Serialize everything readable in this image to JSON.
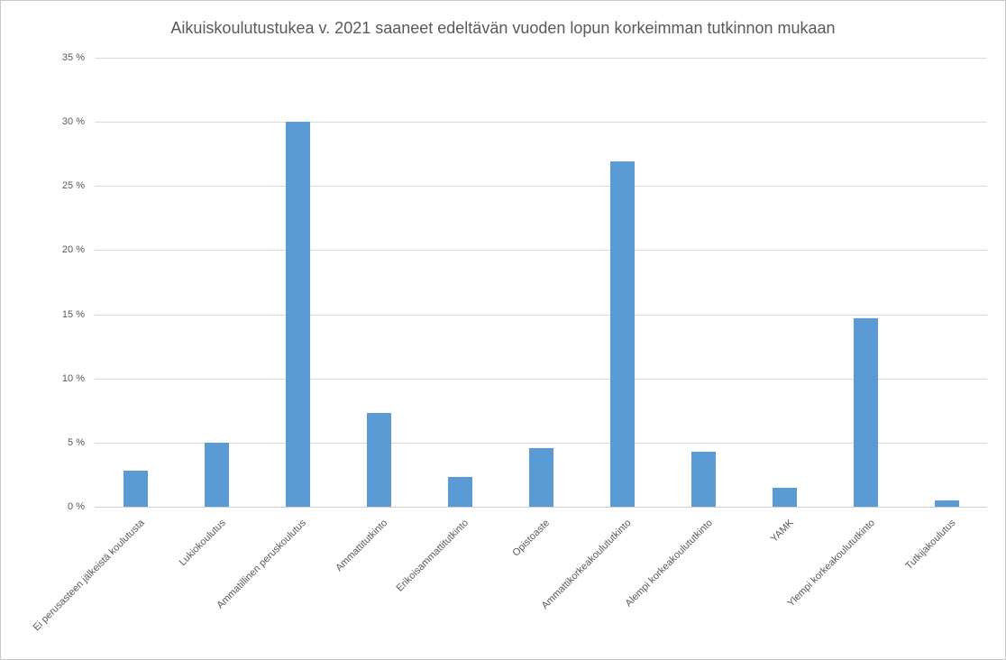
{
  "chart_data": {
    "type": "bar",
    "title": "Aikuiskoulutustukea v. 2021 saaneet edeltävän vuoden lopun korkeimman tutkinnon mukaan",
    "categories": [
      "Ei perusasteen jälkeistä koulutusta",
      "Lukiokoulutus",
      "Ammatillinen peruskoulutus",
      "Ammattitutkinto",
      "Erikoisammattitutkinto",
      "Opistoaste",
      "Ammattikorkeakoulututkinto",
      "Alempi korkeakoulututkinto",
      "YAMK",
      "Ylempi korkeakoulututkinto",
      "Tutkijakoulutus"
    ],
    "values": [
      2.8,
      5.0,
      30.0,
      7.3,
      2.3,
      4.6,
      26.9,
      4.3,
      1.5,
      14.7,
      0.5
    ],
    "unit": "%",
    "xlabel": "",
    "ylabel": "",
    "ylim": [
      0,
      35
    ],
    "y_ticks": [
      0,
      5,
      10,
      15,
      20,
      25,
      30,
      35
    ],
    "y_tick_labels": [
      "0 %",
      "5 %",
      "10 %",
      "15 %",
      "20 %",
      "25 %",
      "30 %",
      "35 %"
    ],
    "grid": true,
    "legend_position": "none",
    "colors": {
      "bar": "#5B9BD5",
      "gridline": "#D9D9D9",
      "axis_line": "#D0CECE",
      "text": "#595959",
      "background": "#FFFFFF",
      "border": "#C9C9C9"
    }
  }
}
